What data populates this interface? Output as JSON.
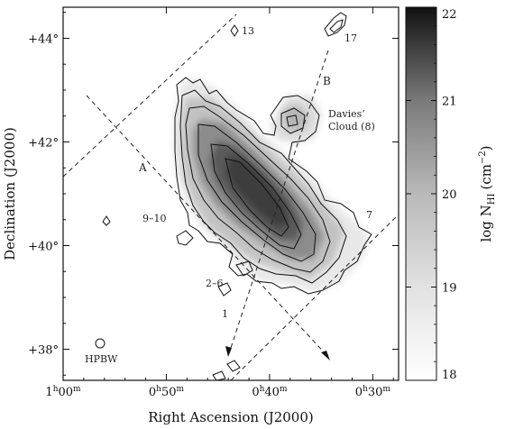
{
  "chart_data": {
    "type": "heatmap",
    "title": "",
    "xlabel": "Right Ascension (J2000)",
    "ylabel": "Declination (J2000)",
    "x_ticks": [
      {
        "label_h": "1",
        "label_m": "00",
        "unit_h": "h",
        "unit_m": "m"
      },
      {
        "label_h": "0",
        "label_m": "50",
        "unit_h": "h",
        "unit_m": "m"
      },
      {
        "label_h": "0",
        "label_m": "40",
        "unit_h": "h",
        "unit_m": "m"
      },
      {
        "label_h": "0",
        "label_m": "30",
        "unit_h": "h",
        "unit_m": "m"
      }
    ],
    "x_tick_minutes": [
      60,
      50,
      40,
      30
    ],
    "xlim_minutes": [
      60,
      27.5
    ],
    "y_ticks": [
      "+38°",
      "+40°",
      "+42°",
      "+44°"
    ],
    "y_tick_values": [
      38,
      40,
      42,
      44
    ],
    "ylim": [
      37.4,
      44.6
    ],
    "colorbar": {
      "label_main": "log N",
      "label_sub": "HI",
      "label_paren_open": "(cm",
      "label_exp": "−2",
      "label_paren_close": ")",
      "ticks": [
        "18",
        "19",
        "20",
        "21",
        "22"
      ],
      "tick_values": [
        18,
        19,
        20,
        21,
        22
      ],
      "range": [
        18,
        22
      ]
    },
    "annotations": [
      {
        "key": "13",
        "text": "13"
      },
      {
        "key": "17",
        "text": "17"
      },
      {
        "key": "B",
        "text": "B"
      },
      {
        "key": "davies1",
        "text": "Davies’"
      },
      {
        "key": "davies2",
        "text": "Cloud (8)"
      },
      {
        "key": "A",
        "text": "A"
      },
      {
        "key": "910",
        "text": "9–10"
      },
      {
        "key": "7",
        "text": "7"
      },
      {
        "key": "26",
        "text": "2–6"
      },
      {
        "key": "1",
        "text": "1"
      },
      {
        "key": "hpbw",
        "text": "HPBW"
      }
    ]
  }
}
